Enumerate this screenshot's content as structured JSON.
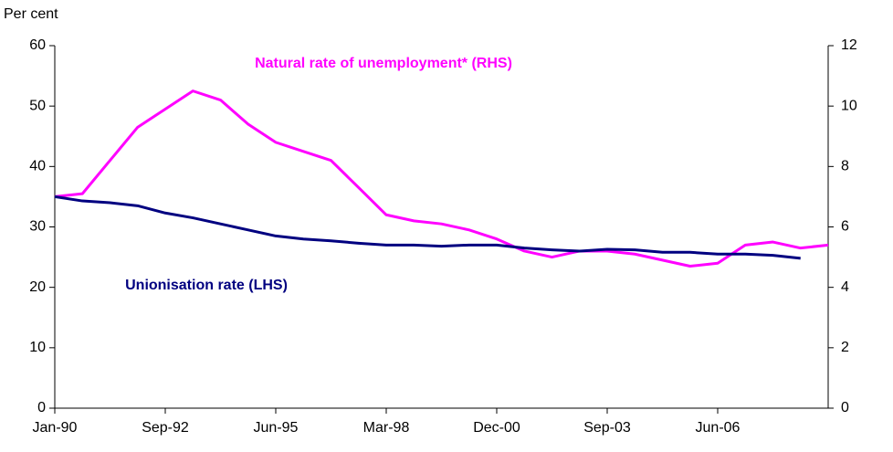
{
  "chart_data": {
    "type": "line",
    "unit_label": "Per cent",
    "categories": [
      "Jan-90",
      null,
      null,
      null,
      "Sep-92",
      null,
      null,
      null,
      "Jun-95",
      null,
      null,
      null,
      "Mar-98",
      null,
      null,
      null,
      "Dec-00",
      null,
      null,
      null,
      "Sep-03",
      null,
      null,
      null,
      "Jun-06",
      null,
      null,
      null,
      null
    ],
    "ylim": [
      0,
      60
    ],
    "yticks": [
      0,
      10,
      20,
      30,
      40,
      50,
      60
    ],
    "y2lim": [
      0,
      12
    ],
    "y2ticks": [
      0,
      2,
      4,
      6,
      8,
      10,
      12
    ],
    "grid": false,
    "series": [
      {
        "name": "Natural rate of unemployment* (RHS)",
        "color": "#ff00ff",
        "axis": "y2",
        "values": [
          7.0,
          7.1,
          8.2,
          9.3,
          9.9,
          10.5,
          10.2,
          9.4,
          8.8,
          8.5,
          8.2,
          7.3,
          6.4,
          6.2,
          6.1,
          5.9,
          5.6,
          5.2,
          5.0,
          5.2,
          5.2,
          5.1,
          4.9,
          4.7,
          4.8,
          5.4,
          5.5,
          5.3,
          5.4
        ]
      },
      {
        "name": "Unionisation rate (LHS)",
        "color": "#000080",
        "values": [
          35,
          34.3,
          34,
          33.5,
          32.3,
          31.5,
          30.5,
          29.5,
          28.5,
          28,
          27.7,
          27.3,
          27,
          27,
          26.8,
          27,
          27,
          26.5,
          26.2,
          26,
          26.3,
          26.2,
          25.8,
          25.8,
          25.5,
          25.5,
          25.3,
          24.8,
          null
        ]
      }
    ]
  }
}
